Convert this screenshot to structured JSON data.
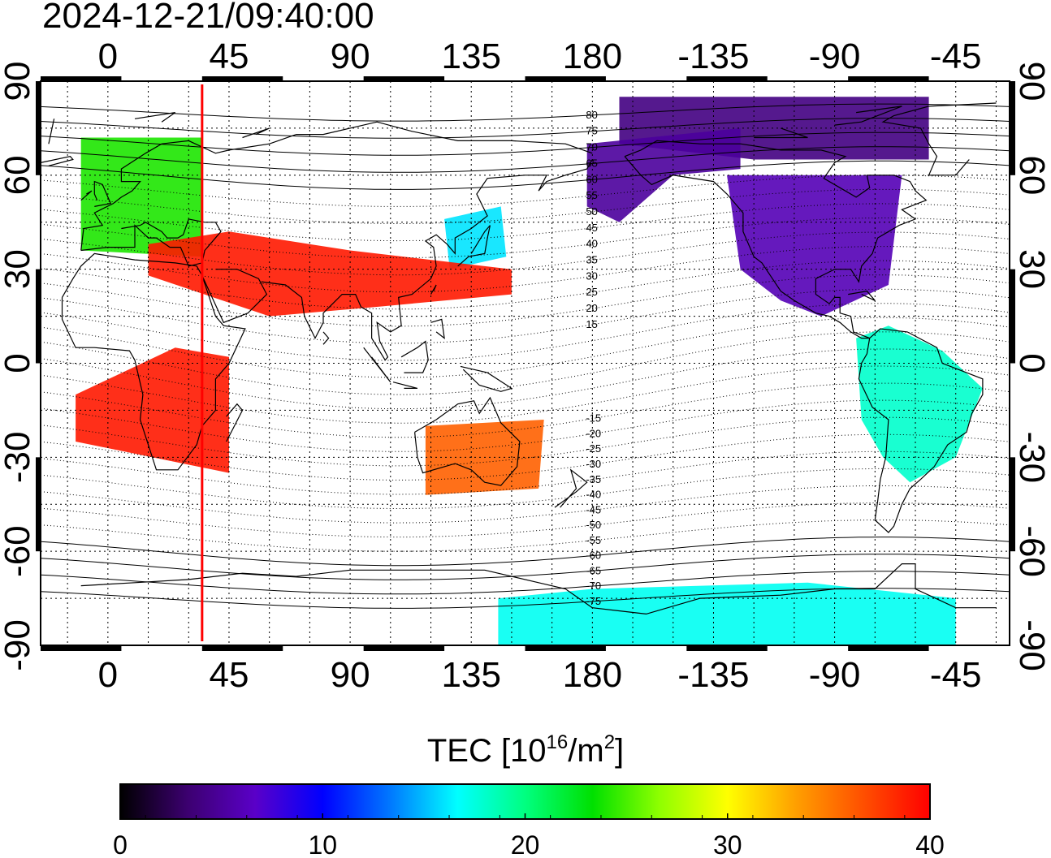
{
  "title": "2024-12-21/09:40:00",
  "map": {
    "projection": "cylindrical",
    "central_longitude": 155,
    "longitude_ticks": [
      0,
      45,
      90,
      135,
      180,
      -135,
      -90,
      -45
    ],
    "longitude_labels": [
      "0",
      "45",
      "90",
      "135",
      "180",
      "-135",
      "-90",
      "-45"
    ],
    "latitude_ticks": [
      90,
      60,
      30,
      0,
      -30,
      -60,
      -90
    ],
    "latitude_labels": [
      "90",
      "60",
      "30",
      "0",
      "-30",
      "-60",
      "-90"
    ],
    "grid": "dotted, 15 degree",
    "subsolar_line_longitude": 35,
    "subsolar_line_color": "#ff0000",
    "magnetic_latitude_labels": [
      "80",
      "75",
      "70",
      "65",
      "60",
      "55",
      "50",
      "45",
      "40",
      "35",
      "30",
      "25",
      "20",
      "15",
      "-15",
      "-20",
      "-25",
      "-30",
      "-35",
      "-40",
      "-45",
      "-50",
      "-55",
      "-60",
      "-65",
      "-70",
      "-75"
    ]
  },
  "colorbar": {
    "label_main": "TEC  [10",
    "label_exp1": "16",
    "label_mid": "/m",
    "label_exp2": "2",
    "label_end": "]",
    "min": 0,
    "max": 40,
    "tick_labels": [
      "0",
      "10",
      "20",
      "30",
      "40"
    ],
    "colors": [
      "#000000",
      "#3c0070",
      "#5a00c8",
      "#0000ff",
      "#0078ff",
      "#00ffff",
      "#00ff80",
      "#00e000",
      "#90ff00",
      "#ffff00",
      "#ffa000",
      "#ff5000",
      "#ff0000"
    ]
  },
  "tec_regions": [
    {
      "name": "europe",
      "value": 24
    },
    {
      "name": "north-america",
      "value": 6
    },
    {
      "name": "canada-arctic",
      "value": 4
    },
    {
      "name": "siberia-pacific",
      "value": 5
    },
    {
      "name": "japan",
      "value": 16
    },
    {
      "name": "south-america",
      "value": 18
    },
    {
      "name": "antarctica",
      "value": 17
    },
    {
      "name": "middle-east-asia",
      "value": 39
    },
    {
      "name": "australia",
      "value": 36
    },
    {
      "name": "africa",
      "value": 39
    }
  ]
}
